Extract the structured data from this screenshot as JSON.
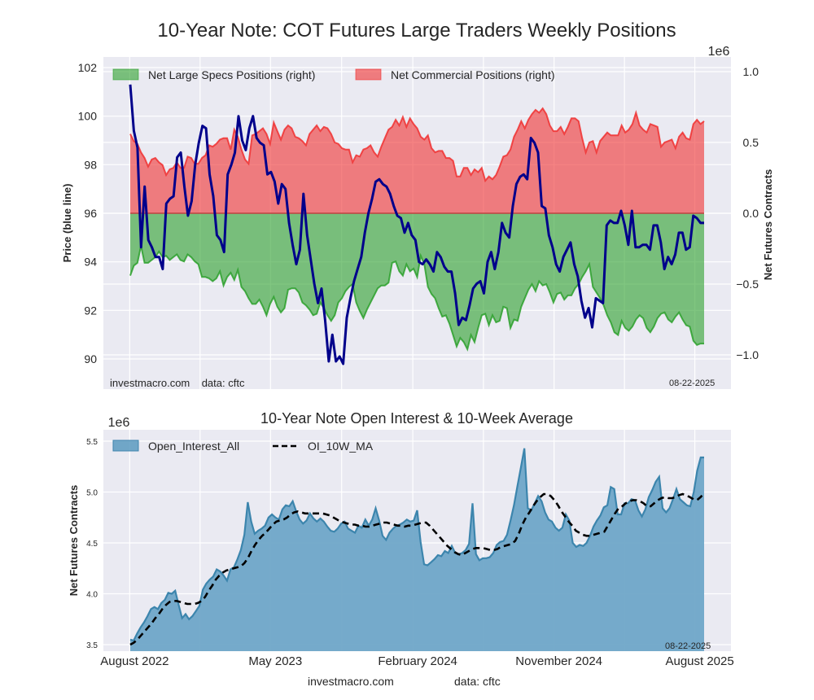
{
  "figure_title": "10-Year Note: COT Futures Large Traders Weekly Positions",
  "footer": {
    "site": "investmacro.com",
    "source": "data: cftc"
  },
  "chart_data": [
    {
      "type": "area",
      "title": "10-Year Note: COT Futures Large Traders Weekly Positions",
      "ylabel_left": "Price (blue line)",
      "ylabel_right": "Net Futures Contracts",
      "right_axis_multiplier": "1e6",
      "ylim_left": [
        89.3,
        102.4
      ],
      "ylim_right": [
        -1.2,
        1.1
      ],
      "yticks_left": [
        "90",
        "92",
        "94",
        "96",
        "98",
        "100",
        "102"
      ],
      "yticks_right": [
        "−1.0",
        "−0.5",
        "0.0",
        "0.5",
        "1.0"
      ],
      "yticks_right_values": [
        -1.0,
        -0.5,
        0.0,
        0.5,
        1.0
      ],
      "yticks_left_values": [
        90,
        92,
        94,
        96,
        98,
        100,
        102
      ],
      "grid": true,
      "legend_position": "top-left",
      "legend": [
        {
          "label": "Net Large Specs Positions (right)",
          "color": "#2ca02c"
        },
        {
          "label": "Net Commercial Positions (right)",
          "color": "#f03030"
        }
      ],
      "annotation_left": "investmacro.com    data: cftc",
      "annotation_right": "08-22-2025",
      "x_start": "2022-08-02",
      "x_end": "2025-08-19",
      "series": [
        {
          "name": "Net Commercial Positions (right)",
          "color": "#f03030",
          "units": "millions of contracts",
          "values": [
            0.56,
            0.51,
            0.49,
            0.43,
            0.39,
            0.33,
            0.38,
            0.39,
            0.36,
            0.34,
            0.27,
            0.31,
            0.32,
            0.36,
            0.32,
            0.32,
            0.4,
            0.39,
            0.35,
            0.35,
            0.39,
            0.41,
            0.48,
            0.47,
            0.49,
            0.52,
            0.53,
            0.53,
            0.45,
            0.59,
            0.54,
            0.45,
            0.38,
            0.35,
            0.55,
            0.56,
            0.58,
            0.6,
            0.56,
            0.49,
            0.64,
            0.58,
            0.52,
            0.59,
            0.62,
            0.6,
            0.54,
            0.53,
            0.51,
            0.48,
            0.56,
            0.59,
            0.62,
            0.58,
            0.61,
            0.6,
            0.56,
            0.5,
            0.49,
            0.46,
            0.45,
            0.45,
            0.36,
            0.41,
            0.4,
            0.45,
            0.46,
            0.48,
            0.43,
            0.4,
            0.47,
            0.53,
            0.59,
            0.61,
            0.66,
            0.62,
            0.68,
            0.61,
            0.67,
            0.63,
            0.6,
            0.54,
            0.52,
            0.55,
            0.46,
            0.43,
            0.44,
            0.44,
            0.39,
            0.39,
            0.37,
            0.26,
            0.26,
            0.32,
            0.32,
            0.27,
            0.31,
            0.29,
            0.32,
            0.23,
            0.26,
            0.24,
            0.27,
            0.33,
            0.4,
            0.41,
            0.45,
            0.54,
            0.59,
            0.65,
            0.6,
            0.66,
            0.7,
            0.73,
            0.71,
            0.74,
            0.7,
            0.62,
            0.58,
            0.58,
            0.61,
            0.56,
            0.61,
            0.67,
            0.67,
            0.65,
            0.53,
            0.43,
            0.5,
            0.51,
            0.43,
            0.51,
            0.54,
            0.57,
            0.55,
            0.55,
            0.55,
            0.62,
            0.57,
            0.59,
            0.63,
            0.71,
            0.62,
            0.59,
            0.57,
            0.63,
            0.62,
            0.61,
            0.47,
            0.5,
            0.51,
            0.52,
            0.46,
            0.54,
            0.57,
            0.53,
            0.52,
            0.63,
            0.66,
            0.63,
            0.65
          ]
        },
        {
          "name": "Net Large Specs Positions (right)",
          "color": "#2ca02c",
          "units": "millions of contracts",
          "values": [
            -0.44,
            -0.37,
            -0.35,
            -0.23,
            -0.35,
            -0.35,
            -0.33,
            -0.31,
            -0.27,
            -0.31,
            -0.3,
            -0.33,
            -0.31,
            -0.29,
            -0.33,
            -0.34,
            -0.29,
            -0.31,
            -0.34,
            -0.36,
            -0.45,
            -0.45,
            -0.46,
            -0.48,
            -0.46,
            -0.41,
            -0.51,
            -0.45,
            -0.42,
            -0.47,
            -0.4,
            -0.52,
            -0.55,
            -0.6,
            -0.64,
            -0.64,
            -0.61,
            -0.66,
            -0.72,
            -0.64,
            -0.59,
            -0.66,
            -0.7,
            -0.67,
            -0.54,
            -0.53,
            -0.53,
            -0.56,
            -0.63,
            -0.65,
            -0.68,
            -0.72,
            -0.71,
            -0.63,
            -0.67,
            -0.72,
            -0.76,
            -0.72,
            -0.63,
            -0.6,
            -0.55,
            -0.52,
            -0.5,
            -0.63,
            -0.69,
            -0.74,
            -0.68,
            -0.63,
            -0.58,
            -0.53,
            -0.51,
            -0.51,
            -0.49,
            -0.35,
            -0.34,
            -0.41,
            -0.44,
            -0.36,
            -0.41,
            -0.39,
            -0.45,
            -0.3,
            -0.36,
            -0.52,
            -0.57,
            -0.6,
            -0.67,
            -0.73,
            -0.72,
            -0.78,
            -0.86,
            -0.94,
            -0.88,
            -0.91,
            -0.96,
            -0.86,
            -0.91,
            -0.81,
            -0.72,
            -0.71,
            -0.79,
            -0.72,
            -0.77,
            -0.76,
            -0.66,
            -0.67,
            -0.81,
            -0.75,
            -0.76,
            -0.66,
            -0.6,
            -0.54,
            -0.5,
            -0.55,
            -0.48,
            -0.51,
            -0.5,
            -0.56,
            -0.63,
            -0.57,
            -0.56,
            -0.61,
            -0.58,
            -0.58,
            -0.53,
            -0.5,
            -0.45,
            -0.41,
            -0.36,
            -0.52,
            -0.56,
            -0.6,
            -0.65,
            -0.72,
            -0.77,
            -0.84,
            -0.86,
            -0.76,
            -0.81,
            -0.83,
            -0.8,
            -0.75,
            -0.72,
            -0.74,
            -0.81,
            -0.84,
            -0.8,
            -0.74,
            -0.71,
            -0.7,
            -0.75,
            -0.77,
            -0.73,
            -0.7,
            -0.75,
            -0.79,
            -0.8,
            -0.9,
            -0.93,
            -0.92,
            -0.92
          ]
        },
        {
          "name": "Price (blue line)",
          "color": "#00008b",
          "units": "price",
          "values": [
            101.3,
            99.4,
            98.7,
            94.6,
            97.1,
            94.9,
            94.6,
            94.2,
            94.2,
            93.7,
            96.4,
            96.6,
            96.7,
            98.3,
            98.5,
            97.1,
            95.9,
            96.5,
            98.0,
            98.9,
            99.6,
            99.5,
            97.6,
            96.7,
            95.1,
            94.9,
            94.4,
            97.6,
            98.0,
            98.5,
            100.0,
            99.0,
            98.6,
            99.5,
            100.0,
            99.1,
            98.9,
            98.8,
            97.6,
            97.7,
            97.3,
            96.4,
            97.2,
            97.0,
            95.6,
            94.7,
            93.9,
            94.5,
            96.8,
            95.1,
            94.1,
            93.1,
            92.3,
            92.9,
            91.6,
            89.9,
            91.0,
            89.9,
            90.1,
            89.8,
            91.7,
            92.5,
            93.2,
            93.7,
            94.2,
            95.2,
            96.0,
            96.6,
            97.3,
            97.4,
            97.2,
            97.1,
            96.8,
            96.3,
            95.9,
            95.8,
            95.2,
            95.6,
            95.1,
            94.9,
            94.0,
            93.9,
            94.1,
            93.9,
            93.6,
            94.4,
            94.2,
            93.8,
            93.6,
            93.6,
            92.7,
            91.4,
            91.7,
            91.6,
            92.2,
            92.9,
            93.1,
            93.2,
            92.7,
            94.0,
            94.4,
            93.7,
            94.4,
            95.6,
            95.2,
            95.0,
            96.3,
            97.2,
            97.5,
            97.6,
            97.4,
            99.1,
            98.9,
            98.5,
            96.3,
            96.2,
            95.1,
            94.6,
            93.9,
            93.6,
            94.2,
            94.5,
            94.8,
            93.9,
            93.4,
            92.4,
            91.7,
            92.1,
            91.3,
            92.5,
            92.4,
            92.3,
            95.5,
            95.7,
            95.6,
            95.6,
            96.1,
            95.5,
            94.7,
            96.1,
            94.6,
            94.6,
            94.7,
            94.7,
            94.5,
            95.5,
            95.5,
            94.8,
            93.7,
            94.2,
            93.9,
            94.3,
            95.2,
            95.2,
            94.5,
            94.6,
            95.9,
            95.8,
            95.6,
            95.6
          ]
        }
      ]
    },
    {
      "type": "area",
      "title": "10-Year Note Open Interest & 10-Week Average",
      "ylabel": "Net Futures Contracts",
      "y_multiplier": "1e6",
      "ylim": [
        3.45,
        5.6
      ],
      "yticks": [
        "3.5",
        "4.0",
        "4.5",
        "5.0",
        "5.5"
      ],
      "yticks_values": [
        3.5,
        4.0,
        4.5,
        5.0,
        5.5
      ],
      "xticks": [
        "August 2022",
        "May 2023",
        "February 2024",
        "November 2024",
        "August 2025"
      ],
      "xticks_dates": [
        "2022-08-01",
        "2023-05-01",
        "2024-02-01",
        "2024-11-01",
        "2025-08-01"
      ],
      "grid": true,
      "legend_position": "top-left",
      "legend": [
        {
          "label": "Open_Interest_All",
          "color": "#5a9ac0",
          "style": "area"
        },
        {
          "label": "OI_10W_MA",
          "color": "#000000",
          "style": "dashed"
        }
      ],
      "annotation_right": "08-22-2025",
      "x_start": "2022-08-02",
      "x_end": "2025-08-19",
      "series": [
        {
          "name": "Open_Interest_All",
          "color": "#5a9ac0",
          "units": "millions of contracts",
          "values": [
            3.55,
            3.54,
            3.61,
            3.67,
            3.72,
            3.78,
            3.85,
            3.87,
            3.85,
            3.91,
            3.94,
            4.01,
            4.0,
            4.03,
            3.89,
            3.76,
            3.8,
            3.75,
            3.78,
            3.83,
            3.88,
            4.04,
            4.1,
            4.14,
            4.17,
            4.24,
            4.22,
            4.18,
            4.13,
            4.24,
            4.26,
            4.34,
            4.43,
            4.58,
            4.9,
            4.71,
            4.59,
            4.62,
            4.64,
            4.67,
            4.75,
            4.78,
            4.75,
            4.73,
            4.83,
            4.87,
            4.86,
            4.91,
            4.81,
            4.73,
            4.69,
            4.72,
            4.79,
            4.74,
            4.71,
            4.74,
            4.71,
            4.66,
            4.62,
            4.61,
            4.64,
            4.69,
            4.71,
            4.64,
            4.62,
            4.6,
            4.67,
            4.65,
            4.73,
            4.67,
            4.73,
            4.84,
            4.72,
            4.57,
            4.53,
            4.6,
            4.64,
            4.67,
            4.68,
            4.7,
            4.73,
            4.71,
            4.72,
            4.82,
            4.51,
            4.29,
            4.28,
            4.31,
            4.34,
            4.38,
            4.37,
            4.42,
            4.4,
            4.47,
            4.4,
            4.39,
            4.4,
            4.43,
            4.49,
            4.89,
            4.39,
            4.33,
            4.35,
            4.35,
            4.36,
            4.4,
            4.48,
            4.51,
            4.52,
            4.58,
            4.72,
            4.87,
            5.06,
            5.24,
            5.43,
            4.84,
            4.82,
            4.89,
            4.96,
            4.91,
            4.8,
            4.73,
            4.71,
            4.65,
            4.62,
            4.65,
            4.78,
            4.72,
            4.5,
            4.46,
            4.48,
            4.47,
            4.5,
            4.57,
            4.66,
            4.72,
            4.77,
            4.85,
            4.87,
            5.05,
            5.03,
            4.78,
            4.78,
            4.89,
            4.89,
            4.93,
            4.92,
            4.82,
            4.76,
            4.83,
            4.95,
            5.02,
            5.1,
            5.15,
            4.84,
            4.8,
            4.84,
            4.93,
            5.03,
            4.93,
            4.9,
            4.87,
            4.86,
            5.0,
            5.21,
            5.34,
            5.34
          ]
        },
        {
          "name": "OI_10W_MA",
          "color": "#000000",
          "units": "millions of contracts",
          "values": [
            3.5,
            3.52,
            3.55,
            3.59,
            3.63,
            3.67,
            3.71,
            3.76,
            3.8,
            3.85,
            3.89,
            3.92,
            3.93,
            3.93,
            3.92,
            3.91,
            3.9,
            3.9,
            3.9,
            3.91,
            3.93,
            3.97,
            4.03,
            4.08,
            4.14,
            4.18,
            4.21,
            4.23,
            4.24,
            4.25,
            4.26,
            4.27,
            4.3,
            4.35,
            4.42,
            4.48,
            4.53,
            4.57,
            4.6,
            4.64,
            4.68,
            4.71,
            4.72,
            4.73,
            4.75,
            4.78,
            4.8,
            4.81,
            4.8,
            4.79,
            4.79,
            4.79,
            4.79,
            4.79,
            4.79,
            4.78,
            4.77,
            4.75,
            4.73,
            4.71,
            4.7,
            4.69,
            4.68,
            4.68,
            4.67,
            4.67,
            4.66,
            4.66,
            4.67,
            4.68,
            4.69,
            4.7,
            4.7,
            4.69,
            4.68,
            4.67,
            4.67,
            4.66,
            4.67,
            4.67,
            4.68,
            4.69,
            4.7,
            4.7,
            4.67,
            4.63,
            4.59,
            4.55,
            4.51,
            4.47,
            4.44,
            4.41,
            4.39,
            4.38,
            4.4,
            4.42,
            4.44,
            4.45,
            4.45,
            4.45,
            4.44,
            4.43,
            4.43,
            4.44,
            4.46,
            4.47,
            4.48,
            4.49,
            4.52,
            4.59,
            4.68,
            4.75,
            4.8,
            4.86,
            4.91,
            4.95,
            4.98,
            4.98,
            4.96,
            4.92,
            4.87,
            4.81,
            4.76,
            4.71,
            4.67,
            4.62,
            4.6,
            4.58,
            4.57,
            4.57,
            4.58,
            4.59,
            4.6,
            4.61,
            4.67,
            4.73,
            4.79,
            4.84,
            4.86,
            4.89,
            4.91,
            4.92,
            4.92,
            4.91,
            4.89,
            4.86,
            4.86,
            4.89,
            4.92,
            4.94,
            4.95,
            4.94,
            4.94,
            4.95,
            4.97,
            4.98,
            4.97,
            4.95,
            4.93,
            4.92,
            4.95,
            4.99
          ]
        }
      ]
    }
  ]
}
